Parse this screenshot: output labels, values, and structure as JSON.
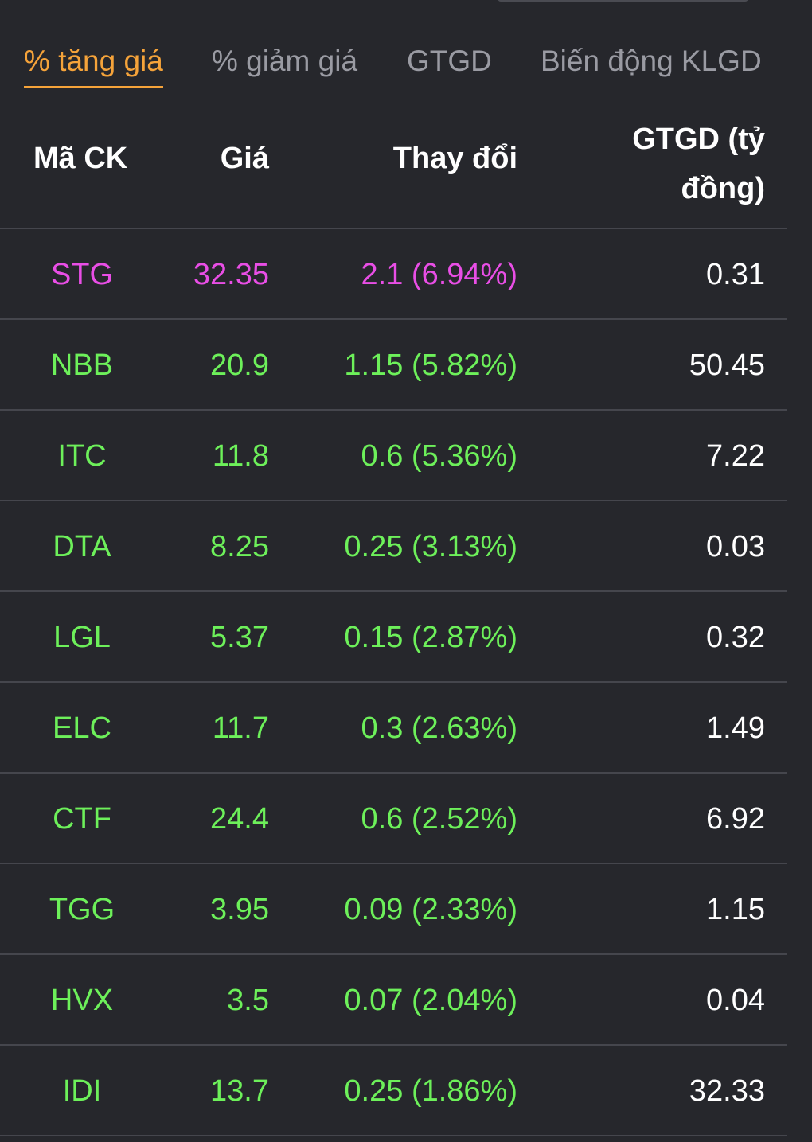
{
  "tabs": [
    {
      "label": "% tăng giá",
      "active": true
    },
    {
      "label": "% giảm giá",
      "active": false
    },
    {
      "label": "GTGD",
      "active": false
    },
    {
      "label": "Biến động KLGD",
      "active": false
    }
  ],
  "columns": {
    "code": "Mã CK",
    "price": "Giá",
    "change": "Thay đổi",
    "value_line1": "GTGD (tỷ",
    "value_line2": "đồng)"
  },
  "colors": {
    "accent": "#f5a33a",
    "up": "#6df05a",
    "ceiling": "#e94ee6",
    "background": "#26272c"
  },
  "rows": [
    {
      "code": "STG",
      "price": "32.35",
      "change": "2.1 (6.94%)",
      "value": "0.31",
      "status": "ceiling"
    },
    {
      "code": "NBB",
      "price": "20.9",
      "change": "1.15 (5.82%)",
      "value": "50.45",
      "status": "up"
    },
    {
      "code": "ITC",
      "price": "11.8",
      "change": "0.6 (5.36%)",
      "value": "7.22",
      "status": "up"
    },
    {
      "code": "DTA",
      "price": "8.25",
      "change": "0.25 (3.13%)",
      "value": "0.03",
      "status": "up"
    },
    {
      "code": "LGL",
      "price": "5.37",
      "change": "0.15 (2.87%)",
      "value": "0.32",
      "status": "up"
    },
    {
      "code": "ELC",
      "price": "11.7",
      "change": "0.3 (2.63%)",
      "value": "1.49",
      "status": "up"
    },
    {
      "code": "CTF",
      "price": "24.4",
      "change": "0.6 (2.52%)",
      "value": "6.92",
      "status": "up"
    },
    {
      "code": "TGG",
      "price": "3.95",
      "change": "0.09 (2.33%)",
      "value": "1.15",
      "status": "up"
    },
    {
      "code": "HVX",
      "price": "3.5",
      "change": "0.07 (2.04%)",
      "value": "0.04",
      "status": "up"
    },
    {
      "code": "IDI",
      "price": "13.7",
      "change": "0.25 (1.86%)",
      "value": "32.33",
      "status": "up"
    }
  ]
}
